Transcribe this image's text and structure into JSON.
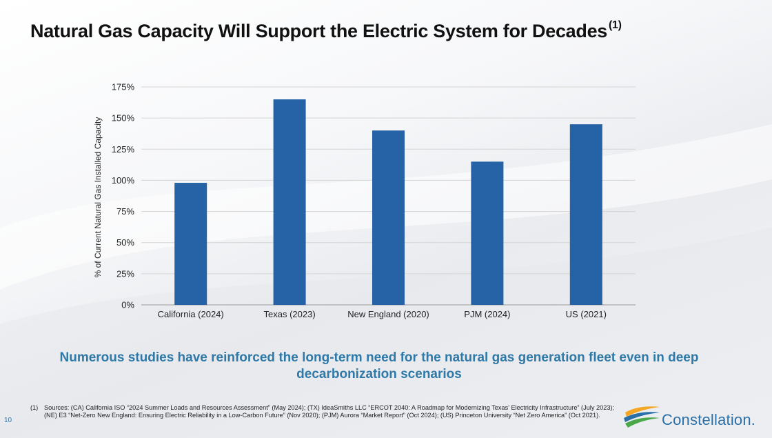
{
  "title": "Natural Gas Capacity Will Support the Electric System for Decades",
  "title_footnote_marker": "(1)",
  "chart_data": {
    "type": "bar",
    "categories": [
      "California (2024)",
      "Texas (2023)",
      "New England (2020)",
      "PJM (2024)",
      "US (2021)"
    ],
    "values": [
      98,
      165,
      140,
      115,
      145
    ],
    "ylabel": "% of Current Natural Gas Installed Capacity",
    "xlabel": "",
    "ylim": [
      0,
      175
    ],
    "yticks": [
      0,
      25,
      50,
      75,
      100,
      125,
      150,
      175
    ],
    "ytick_labels": [
      "0%",
      "25%",
      "50%",
      "75%",
      "100%",
      "125%",
      "150%",
      "175%"
    ],
    "grid": true,
    "bar_color": "#2563a6"
  },
  "tagline": "Numerous studies have reinforced the long-term need for the natural gas generation fleet even in deep decarbonization scenarios",
  "footnote": {
    "marker": "(1)",
    "text": "Sources: (CA) California ISO “2024 Summer Loads and Resources Assessment” (May 2024); (TX) IdeaSmiths LLC “ERCOT 2040: A Roadmap for Modernizing Texas’ Electricity Infrastructure” (July 2023); (NE) E3 “Net-Zero New England: Ensuring Electric Reliability in a Low-Carbon Future” (Nov 2020); (PJM) Aurora “Market Report” (Oct 2024); (US) Princeton University “Net Zero America” (Oct 2021)."
  },
  "page_number": "10",
  "logo": {
    "name": "Constellation.",
    "icon": "constellation-swoosh-logo",
    "colors": [
      "#f5a623",
      "#2a6fa8",
      "#4aa84a"
    ]
  }
}
